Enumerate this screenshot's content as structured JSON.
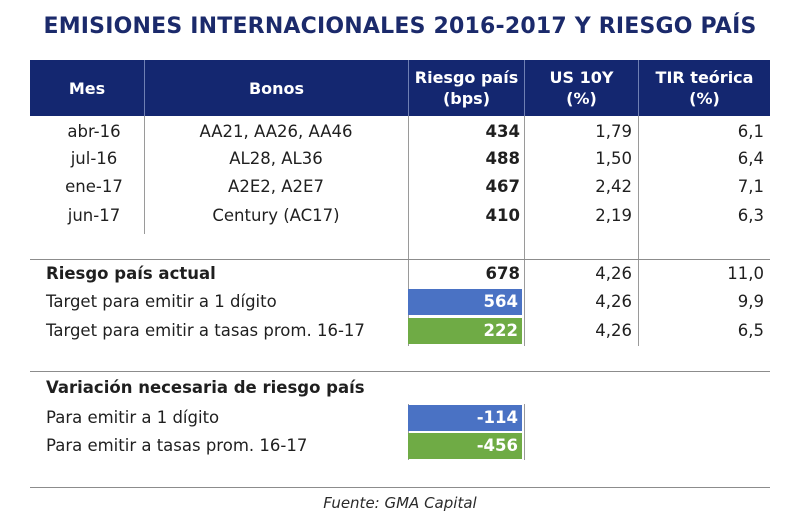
{
  "chart_data": {
    "type": "table",
    "title": "EMISIONES INTERNACIONALES 2016-2017 Y RIESGO PAÍS",
    "headers": {
      "mes": "Mes",
      "bonos": "Bonos",
      "riesgo_1": "Riesgo país",
      "riesgo_2": "(bps)",
      "us_1": "US 10Y",
      "us_2": "(%)",
      "tir_1": "TIR teórica",
      "tir_2": "(%)"
    },
    "emisiones": [
      {
        "mes": "abr-16",
        "bonos": "AA21, AA26, AA46",
        "riesgo": "434",
        "us10y": "1,79",
        "tir": "6,1"
      },
      {
        "mes": "jul-16",
        "bonos": "AL28, AL36",
        "riesgo": "488",
        "us10y": "1,50",
        "tir": "6,4"
      },
      {
        "mes": "ene-17",
        "bonos": "A2E2, A2E7",
        "riesgo": "467",
        "us10y": "2,42",
        "tir": "7,1"
      },
      {
        "mes": "jun-17",
        "bonos": "Century (AC17)",
        "riesgo": "410",
        "us10y": "2,19",
        "tir": "6,3"
      }
    ],
    "actual": {
      "label": "Riesgo país actual",
      "riesgo": "678",
      "us10y": "4,26",
      "tir": "11,0"
    },
    "targets": [
      {
        "label": "Target para emitir a 1 dígito",
        "riesgo": "564",
        "us10y": "4,26",
        "tir": "9,9",
        "highlight": "#4a72c4"
      },
      {
        "label": "Target para emitir a tasas prom. 16-17",
        "riesgo": "222",
        "us10y": "4,26",
        "tir": "6,5",
        "highlight": "#6fab45"
      }
    ],
    "variacion": {
      "heading": "Variación necesaria de riesgo país",
      "rows": [
        {
          "label": "Para emitir a 1 dígito",
          "value": "-114",
          "highlight": "#4a72c4"
        },
        {
          "label": "Para emitir a tasas prom. 16-17",
          "value": "-456",
          "highlight": "#6fab45"
        }
      ]
    },
    "source": "Fuente: GMA Capital"
  },
  "colors": {
    "header_bg": "#142770",
    "title": "#1b2a6b",
    "blue_highlight": "#4a72c4",
    "green_highlight": "#6fab45"
  }
}
